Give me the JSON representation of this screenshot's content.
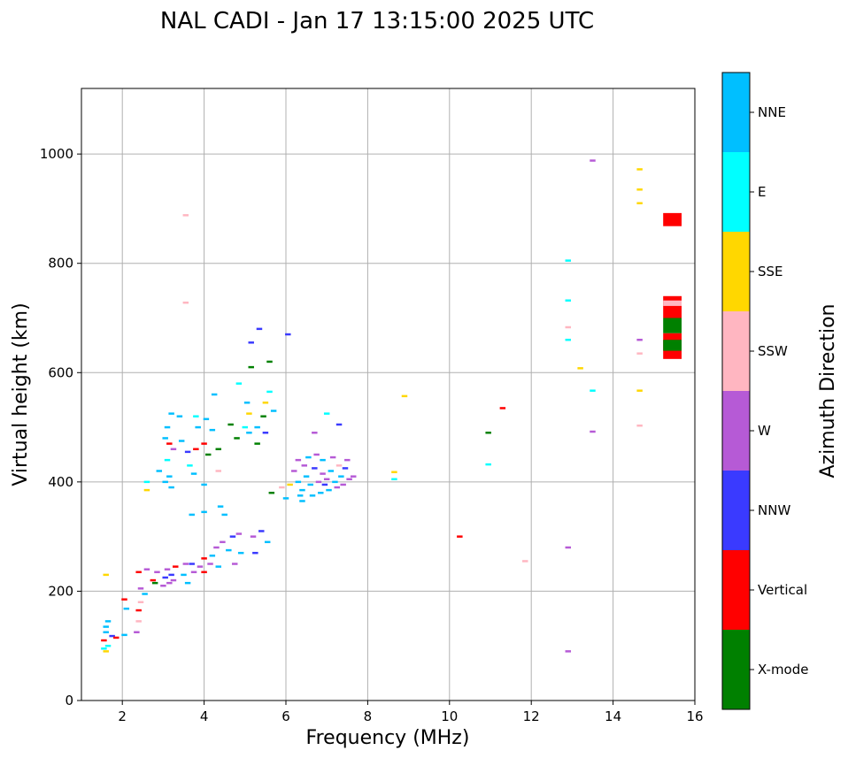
{
  "chart_data": {
    "type": "scatter",
    "title": "NAL CADI - Jan 17 13:15:00 2025 UTC",
    "xlabel": "Frequency (MHz)",
    "ylabel": "Virtual height (km)",
    "xlim": [
      1,
      16
    ],
    "ylim": [
      0,
      1120
    ],
    "xticks": [
      2,
      4,
      6,
      8,
      10,
      12,
      14,
      16
    ],
    "yticks": [
      0,
      200,
      400,
      600,
      800,
      1000
    ],
    "grid": true,
    "colorbar": {
      "title": "Azimuth Direction",
      "categories": [
        {
          "label": "X-mode",
          "color": "#008000"
        },
        {
          "label": "Vertical",
          "color": "#ff0000"
        },
        {
          "label": "NNW",
          "color": "#3a3aff"
        },
        {
          "label": "W",
          "color": "#b65ad6"
        },
        {
          "label": "SSW",
          "color": "#ffb6c1"
        },
        {
          "label": "SSE",
          "color": "#ffd700"
        },
        {
          "label": "E",
          "color": "#00ffff"
        },
        {
          "label": "NNE",
          "color": "#00bfff"
        }
      ]
    },
    "points": [
      {
        "f": 1.55,
        "h": 95,
        "c": "E"
      },
      {
        "f": 1.55,
        "h": 110,
        "c": "Vertical"
      },
      {
        "f": 1.6,
        "h": 125,
        "c": "NNE"
      },
      {
        "f": 1.6,
        "h": 135,
        "c": "NNE"
      },
      {
        "f": 1.65,
        "h": 145,
        "c": "NNE"
      },
      {
        "f": 1.6,
        "h": 90,
        "c": "SSE"
      },
      {
        "f": 1.65,
        "h": 100,
        "c": "E"
      },
      {
        "f": 1.6,
        "h": 230,
        "c": "SSE"
      },
      {
        "f": 1.75,
        "h": 118,
        "c": "NNW"
      },
      {
        "f": 1.85,
        "h": 115,
        "c": "Vertical"
      },
      {
        "f": 2.05,
        "h": 120,
        "c": "NNE"
      },
      {
        "f": 2.05,
        "h": 185,
        "c": "Vertical"
      },
      {
        "f": 2.1,
        "h": 168,
        "c": "NNE"
      },
      {
        "f": 2.35,
        "h": 125,
        "c": "W"
      },
      {
        "f": 2.4,
        "h": 145,
        "c": "SSW"
      },
      {
        "f": 2.4,
        "h": 165,
        "c": "Vertical"
      },
      {
        "f": 2.45,
        "h": 180,
        "c": "SSW"
      },
      {
        "f": 2.45,
        "h": 205,
        "c": "W"
      },
      {
        "f": 2.4,
        "h": 235,
        "c": "Vertical"
      },
      {
        "f": 2.55,
        "h": 195,
        "c": "NNE"
      },
      {
        "f": 2.6,
        "h": 240,
        "c": "W"
      },
      {
        "f": 2.6,
        "h": 385,
        "c": "SSE"
      },
      {
        "f": 2.6,
        "h": 400,
        "c": "E"
      },
      {
        "f": 2.75,
        "h": 220,
        "c": "Vertical"
      },
      {
        "f": 2.8,
        "h": 215,
        "c": "X-mode"
      },
      {
        "f": 2.85,
        "h": 235,
        "c": "W"
      },
      {
        "f": 2.9,
        "h": 420,
        "c": "NNE"
      },
      {
        "f": 3.0,
        "h": 210,
        "c": "W"
      },
      {
        "f": 3.05,
        "h": 225,
        "c": "NNW"
      },
      {
        "f": 3.1,
        "h": 240,
        "c": "W"
      },
      {
        "f": 3.15,
        "h": 215,
        "c": "W"
      },
      {
        "f": 3.2,
        "h": 230,
        "c": "NNW"
      },
      {
        "f": 3.25,
        "h": 220,
        "c": "W"
      },
      {
        "f": 3.3,
        "h": 245,
        "c": "Vertical"
      },
      {
        "f": 3.05,
        "h": 480,
        "c": "NNE"
      },
      {
        "f": 3.1,
        "h": 500,
        "c": "NNE"
      },
      {
        "f": 3.15,
        "h": 470,
        "c": "Vertical"
      },
      {
        "f": 3.2,
        "h": 525,
        "c": "NNE"
      },
      {
        "f": 3.1,
        "h": 440,
        "c": "E"
      },
      {
        "f": 3.15,
        "h": 410,
        "c": "NNE"
      },
      {
        "f": 3.2,
        "h": 390,
        "c": "NNE"
      },
      {
        "f": 3.05,
        "h": 400,
        "c": "NNE"
      },
      {
        "f": 3.25,
        "h": 460,
        "c": "W"
      },
      {
        "f": 3.4,
        "h": 520,
        "c": "NNE"
      },
      {
        "f": 3.45,
        "h": 475,
        "c": "NNE"
      },
      {
        "f": 3.5,
        "h": 230,
        "c": "NNE"
      },
      {
        "f": 3.55,
        "h": 250,
        "c": "W"
      },
      {
        "f": 3.6,
        "h": 215,
        "c": "NNE"
      },
      {
        "f": 3.6,
        "h": 455,
        "c": "NNW"
      },
      {
        "f": 3.65,
        "h": 430,
        "c": "E"
      },
      {
        "f": 3.7,
        "h": 250,
        "c": "NNW"
      },
      {
        "f": 3.75,
        "h": 235,
        "c": "W"
      },
      {
        "f": 3.7,
        "h": 340,
        "c": "NNE"
      },
      {
        "f": 3.75,
        "h": 415,
        "c": "NNE"
      },
      {
        "f": 3.8,
        "h": 460,
        "c": "Vertical"
      },
      {
        "f": 3.85,
        "h": 500,
        "c": "NNE"
      },
      {
        "f": 3.8,
        "h": 520,
        "c": "E"
      },
      {
        "f": 3.9,
        "h": 245,
        "c": "W"
      },
      {
        "f": 4.0,
        "h": 260,
        "c": "Vertical"
      },
      {
        "f": 4.0,
        "h": 235,
        "c": "Vertical"
      },
      {
        "f": 4.0,
        "h": 345,
        "c": "NNE"
      },
      {
        "f": 4.0,
        "h": 395,
        "c": "NNE"
      },
      {
        "f": 4.0,
        "h": 470,
        "c": "Vertical"
      },
      {
        "f": 4.05,
        "h": 515,
        "c": "NNE"
      },
      {
        "f": 4.1,
        "h": 450,
        "c": "X-mode"
      },
      {
        "f": 4.15,
        "h": 250,
        "c": "W"
      },
      {
        "f": 4.2,
        "h": 265,
        "c": "NNE"
      },
      {
        "f": 4.2,
        "h": 495,
        "c": "NNE"
      },
      {
        "f": 4.25,
        "h": 560,
        "c": "NNE"
      },
      {
        "f": 4.3,
        "h": 280,
        "c": "W"
      },
      {
        "f": 4.35,
        "h": 245,
        "c": "NNE"
      },
      {
        "f": 4.35,
        "h": 420,
        "c": "SSW"
      },
      {
        "f": 4.35,
        "h": 460,
        "c": "X-mode"
      },
      {
        "f": 4.4,
        "h": 355,
        "c": "NNE"
      },
      {
        "f": 4.45,
        "h": 290,
        "c": "W"
      },
      {
        "f": 4.5,
        "h": 340,
        "c": "NNE"
      },
      {
        "f": 4.6,
        "h": 275,
        "c": "NNE"
      },
      {
        "f": 4.65,
        "h": 505,
        "c": "X-mode"
      },
      {
        "f": 4.7,
        "h": 300,
        "c": "NNW"
      },
      {
        "f": 4.75,
        "h": 250,
        "c": "W"
      },
      {
        "f": 4.8,
        "h": 480,
        "c": "X-mode"
      },
      {
        "f": 4.85,
        "h": 305,
        "c": "W"
      },
      {
        "f": 4.9,
        "h": 270,
        "c": "NNE"
      },
      {
        "f": 4.85,
        "h": 580,
        "c": "E"
      },
      {
        "f": 5.0,
        "h": 500,
        "c": "E"
      },
      {
        "f": 5.05,
        "h": 545,
        "c": "NNE"
      },
      {
        "f": 5.1,
        "h": 525,
        "c": "SSE"
      },
      {
        "f": 5.1,
        "h": 490,
        "c": "NNE"
      },
      {
        "f": 5.15,
        "h": 610,
        "c": "X-mode"
      },
      {
        "f": 5.15,
        "h": 655,
        "c": "NNW"
      },
      {
        "f": 5.2,
        "h": 300,
        "c": "W"
      },
      {
        "f": 5.25,
        "h": 270,
        "c": "NNW"
      },
      {
        "f": 5.3,
        "h": 500,
        "c": "NNE"
      },
      {
        "f": 5.3,
        "h": 470,
        "c": "X-mode"
      },
      {
        "f": 5.35,
        "h": 680,
        "c": "NNW"
      },
      {
        "f": 5.4,
        "h": 310,
        "c": "NNW"
      },
      {
        "f": 5.45,
        "h": 520,
        "c": "X-mode"
      },
      {
        "f": 5.5,
        "h": 490,
        "c": "NNW"
      },
      {
        "f": 5.5,
        "h": 545,
        "c": "SSE"
      },
      {
        "f": 5.55,
        "h": 290,
        "c": "NNE"
      },
      {
        "f": 5.6,
        "h": 565,
        "c": "E"
      },
      {
        "f": 5.6,
        "h": 620,
        "c": "X-mode"
      },
      {
        "f": 5.65,
        "h": 380,
        "c": "X-mode"
      },
      {
        "f": 5.7,
        "h": 530,
        "c": "NNE"
      },
      {
        "f": 5.9,
        "h": 390,
        "c": "SSW"
      },
      {
        "f": 6.0,
        "h": 370,
        "c": "NNE"
      },
      {
        "f": 6.05,
        "h": 670,
        "c": "NNW"
      },
      {
        "f": 6.1,
        "h": 395,
        "c": "SSE"
      },
      {
        "f": 6.2,
        "h": 420,
        "c": "W"
      },
      {
        "f": 6.3,
        "h": 440,
        "c": "W"
      },
      {
        "f": 6.3,
        "h": 400,
        "c": "NNE"
      },
      {
        "f": 6.35,
        "h": 375,
        "c": "NNE"
      },
      {
        "f": 6.4,
        "h": 385,
        "c": "NNE"
      },
      {
        "f": 6.4,
        "h": 365,
        "c": "NNE"
      },
      {
        "f": 6.45,
        "h": 430,
        "c": "W"
      },
      {
        "f": 6.5,
        "h": 410,
        "c": "NNE"
      },
      {
        "f": 6.55,
        "h": 445,
        "c": "NNE"
      },
      {
        "f": 6.6,
        "h": 395,
        "c": "NNE"
      },
      {
        "f": 6.65,
        "h": 375,
        "c": "NNE"
      },
      {
        "f": 6.7,
        "h": 490,
        "c": "W"
      },
      {
        "f": 6.7,
        "h": 425,
        "c": "NNW"
      },
      {
        "f": 6.75,
        "h": 450,
        "c": "W"
      },
      {
        "f": 6.8,
        "h": 400,
        "c": "W"
      },
      {
        "f": 6.85,
        "h": 380,
        "c": "NNE"
      },
      {
        "f": 6.9,
        "h": 415,
        "c": "W"
      },
      {
        "f": 6.9,
        "h": 440,
        "c": "NNE"
      },
      {
        "f": 6.95,
        "h": 395,
        "c": "NNW"
      },
      {
        "f": 7.0,
        "h": 525,
        "c": "E"
      },
      {
        "f": 7.0,
        "h": 405,
        "c": "W"
      },
      {
        "f": 7.05,
        "h": 385,
        "c": "NNE"
      },
      {
        "f": 7.1,
        "h": 420,
        "c": "NNE"
      },
      {
        "f": 7.15,
        "h": 445,
        "c": "W"
      },
      {
        "f": 7.2,
        "h": 400,
        "c": "NNE"
      },
      {
        "f": 7.25,
        "h": 390,
        "c": "W"
      },
      {
        "f": 7.3,
        "h": 505,
        "c": "NNW"
      },
      {
        "f": 7.3,
        "h": 430,
        "c": "SSW"
      },
      {
        "f": 7.35,
        "h": 410,
        "c": "NNE"
      },
      {
        "f": 7.4,
        "h": 395,
        "c": "W"
      },
      {
        "f": 7.45,
        "h": 425,
        "c": "NNW"
      },
      {
        "f": 7.5,
        "h": 440,
        "c": "W"
      },
      {
        "f": 7.55,
        "h": 405,
        "c": "W"
      },
      {
        "f": 7.65,
        "h": 410,
        "c": "W"
      },
      {
        "f": 3.55,
        "h": 888,
        "c": "SSW"
      },
      {
        "f": 3.55,
        "h": 728,
        "c": "SSW"
      },
      {
        "f": 8.65,
        "h": 418,
        "c": "SSE"
      },
      {
        "f": 8.65,
        "h": 405,
        "c": "E"
      },
      {
        "f": 8.9,
        "h": 557,
        "c": "SSE"
      },
      {
        "f": 10.25,
        "h": 300,
        "c": "Vertical"
      },
      {
        "f": 10.95,
        "h": 490,
        "c": "X-mode"
      },
      {
        "f": 10.95,
        "h": 432,
        "c": "E"
      },
      {
        "f": 11.3,
        "h": 535,
        "c": "Vertical"
      },
      {
        "f": 11.85,
        "h": 255,
        "c": "SSW"
      },
      {
        "f": 12.9,
        "h": 805,
        "c": "E"
      },
      {
        "f": 12.9,
        "h": 732,
        "c": "E"
      },
      {
        "f": 12.9,
        "h": 683,
        "c": "SSW"
      },
      {
        "f": 12.9,
        "h": 660,
        "c": "E"
      },
      {
        "f": 12.9,
        "h": 280,
        "c": "W"
      },
      {
        "f": 12.9,
        "h": 90,
        "c": "W"
      },
      {
        "f": 13.2,
        "h": 608,
        "c": "SSE"
      },
      {
        "f": 13.5,
        "h": 988,
        "c": "W"
      },
      {
        "f": 13.5,
        "h": 567,
        "c": "E"
      },
      {
        "f": 13.5,
        "h": 492,
        "c": "W"
      },
      {
        "f": 14.65,
        "h": 972,
        "c": "SSE"
      },
      {
        "f": 14.65,
        "h": 935,
        "c": "SSE"
      },
      {
        "f": 14.65,
        "h": 910,
        "c": "SSE"
      },
      {
        "f": 14.65,
        "h": 660,
        "c": "W"
      },
      {
        "f": 14.65,
        "h": 635,
        "c": "SSW"
      },
      {
        "f": 14.65,
        "h": 567,
        "c": "SSE"
      },
      {
        "f": 14.65,
        "h": 503,
        "c": "SSW"
      }
    ],
    "blocks": [
      {
        "f": 15.45,
        "h0": 868,
        "h1": 892,
        "c": "Vertical"
      },
      {
        "f": 15.45,
        "h0": 700,
        "h1": 740,
        "c": "Vertical"
      },
      {
        "f": 15.45,
        "h0": 722,
        "h1": 732,
        "c": "SSW"
      },
      {
        "f": 15.45,
        "h0": 672,
        "h1": 700,
        "c": "X-mode"
      },
      {
        "f": 15.45,
        "h0": 625,
        "h1": 672,
        "c": "Vertical"
      },
      {
        "f": 15.45,
        "h0": 640,
        "h1": 660,
        "c": "X-mode"
      }
    ]
  }
}
